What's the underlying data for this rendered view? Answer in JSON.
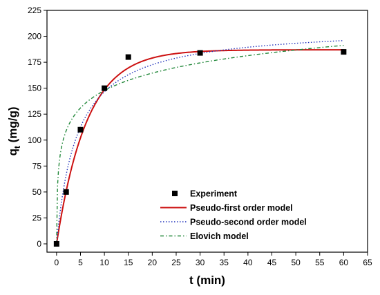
{
  "chart_data": {
    "type": "scatter",
    "title": "",
    "xlabel": "t (min)",
    "ylabel_main": "q",
    "ylabel_sub": "t",
    "ylabel_unit": " (mg/g)",
    "xlim": [
      -2,
      65
    ],
    "ylim": [
      -8,
      225
    ],
    "xticks": [
      0,
      5,
      10,
      15,
      20,
      25,
      30,
      35,
      40,
      45,
      50,
      55,
      60,
      65
    ],
    "yticks": [
      0,
      25,
      50,
      75,
      100,
      125,
      150,
      175,
      200,
      225
    ],
    "grid": false,
    "legend_position": "bottom-center",
    "series": [
      {
        "name": "Experiment",
        "kind": "points",
        "color": "#000000",
        "x": [
          0,
          2,
          5,
          10,
          15,
          30,
          60
        ],
        "y": [
          0,
          50,
          110,
          150,
          180,
          184,
          185
        ]
      },
      {
        "name": "Pseudo-first order model",
        "kind": "line",
        "style": "solid",
        "color": "#cc1111",
        "model": "pfo",
        "params": {
          "qe": 187,
          "k1": 0.158
        },
        "x_range": [
          0,
          60
        ]
      },
      {
        "name": "Pseudo-second order model",
        "kind": "line",
        "style": "dotted",
        "color": "#2233bb",
        "model": "pso",
        "params": {
          "qe": 210,
          "k2": 0.0011
        },
        "x_range": [
          0,
          60
        ]
      },
      {
        "name": "Elovich model",
        "kind": "line",
        "style": "dashdot",
        "color": "#22883a",
        "model": "elovich",
        "params": {
          "a": 24.3,
          "b": 43.6
        },
        "x_range": [
          0,
          60
        ]
      }
    ]
  }
}
